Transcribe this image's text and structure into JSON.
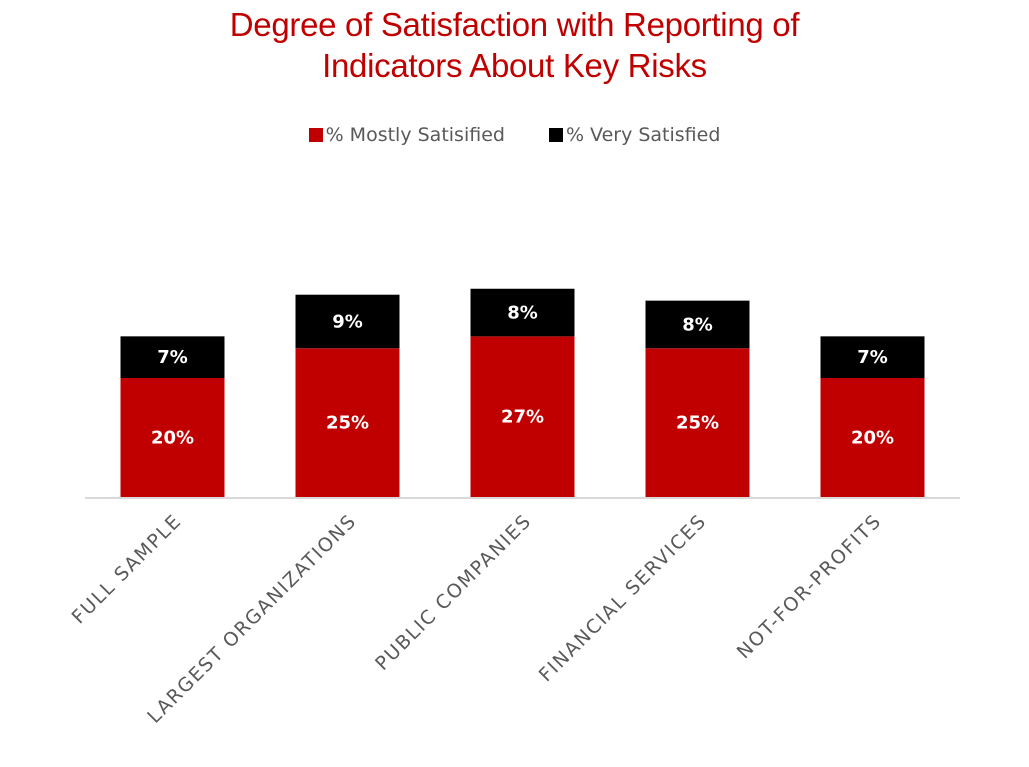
{
  "chart_data": {
    "type": "bar",
    "stacked": true,
    "title": "Degree of Satisfaction with Reporting of Indicators About Key Risks",
    "title_lines": [
      "Degree of Satisfaction with Reporting of",
      "Indicators About Key Risks"
    ],
    "categories": [
      "FULL SAMPLE",
      "LARGEST ORGANIZATIONS",
      "PUBLIC COMPANIES",
      "FINANCIAL SERVICES",
      "NOT-FOR-PROFITS"
    ],
    "series": [
      {
        "name": "% Mostly Satisified",
        "color": "#c00000",
        "values": [
          20,
          25,
          27,
          25,
          20
        ],
        "labels": [
          "20%",
          "25%",
          "27%",
          "25%",
          "20%"
        ]
      },
      {
        "name": "% Very Satisfied",
        "color": "#000000",
        "values": [
          7,
          9,
          8,
          8,
          7
        ],
        "labels": [
          "7%",
          "9%",
          "8%",
          "8%",
          "7%"
        ]
      }
    ],
    "ylim": [
      0,
      36
    ],
    "legend_position": "top-center",
    "xlabel": "",
    "ylabel": "",
    "grid": false
  }
}
